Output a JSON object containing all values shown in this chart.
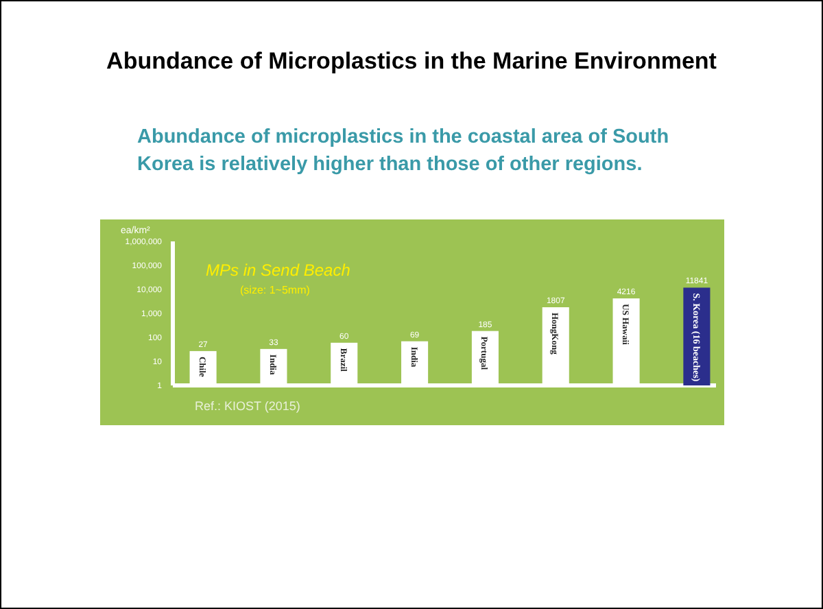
{
  "chart_data": {
    "type": "bar",
    "title": "Abundance of Microplastics in the Marine Environment",
    "subtitle": "Abundance of microplastics in the coastal area of South Korea is relatively higher than those of other regions.",
    "ylabel": "ea/km²",
    "categories": [
      "Chile",
      "India",
      "Brazil",
      "India",
      "Portugal",
      "HongKong",
      "US Hawaii",
      "S. Korea (16 beaches)"
    ],
    "values": [
      27,
      33,
      60,
      69,
      185,
      1807,
      4216,
      11841
    ],
    "colors": [
      "#ffffff",
      "#ffffff",
      "#ffffff",
      "#ffffff",
      "#ffffff",
      "#ffffff",
      "#ffffff",
      "#2b2e8c"
    ],
    "log": true,
    "ylim": [
      1,
      1000000
    ],
    "yticks": [
      1,
      10,
      100,
      {
        "value": 1000,
        "label": "1,000"
      },
      {
        "value": 10000,
        "label": "10,000"
      },
      {
        "value": 100000,
        "label": "100,000"
      },
      {
        "value": 1000000,
        "label": "1,000,000"
      }
    ],
    "data_labels": true,
    "annotations": [
      "MPs in Send Beach",
      "(size: 1~5mm)",
      "Ref.: KIOST (2015)"
    ]
  }
}
